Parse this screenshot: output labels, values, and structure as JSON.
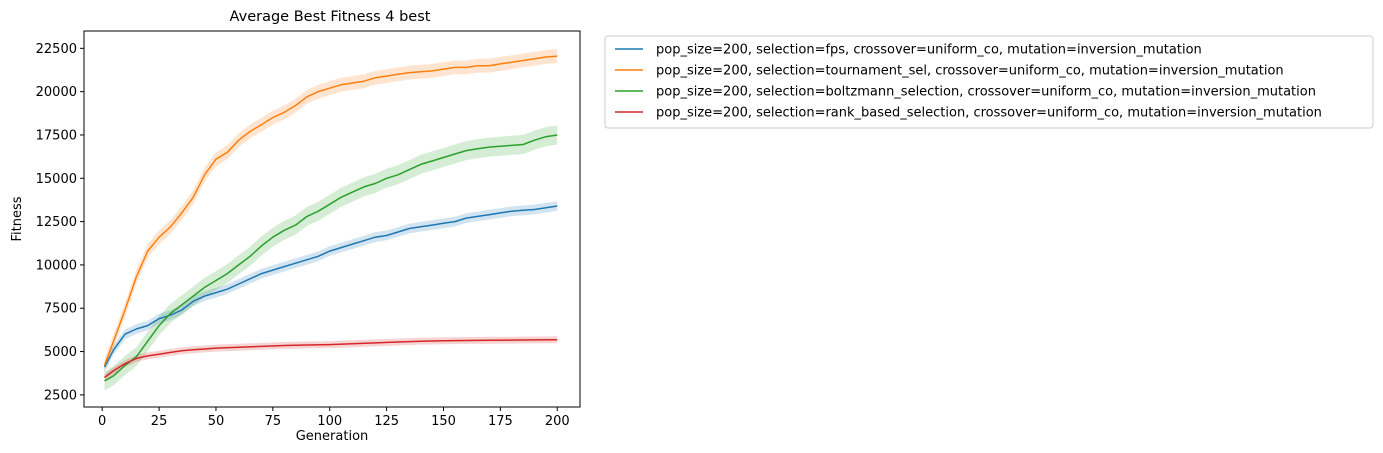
{
  "chart_data": {
    "type": "line",
    "title": "Average Best Fitness 4 best",
    "xlabel": "Generation",
    "ylabel": "Fitness",
    "xlim": [
      -8,
      210
    ],
    "ylim": [
      1800,
      23500
    ],
    "xticks": [
      0,
      25,
      50,
      75,
      100,
      125,
      150,
      175,
      200
    ],
    "yticks": [
      2500,
      5000,
      7500,
      10000,
      12500,
      15000,
      17500,
      20000,
      22500
    ],
    "grid": false,
    "legend_position": "outside-top-right",
    "series": [
      {
        "name": "pop_size=200, selection=fps, crossover=uniform_co, mutation=inversion_mutation",
        "color": "#1f77b4",
        "x": [
          1,
          5,
          10,
          15,
          20,
          25,
          30,
          35,
          40,
          45,
          50,
          55,
          60,
          65,
          70,
          75,
          80,
          85,
          90,
          95,
          100,
          105,
          110,
          115,
          120,
          125,
          130,
          135,
          140,
          145,
          150,
          155,
          160,
          165,
          170,
          175,
          180,
          185,
          190,
          195,
          200
        ],
        "y": [
          4100,
          5100,
          6000,
          6300,
          6500,
          6900,
          7100,
          7400,
          7900,
          8200,
          8400,
          8600,
          8900,
          9200,
          9500,
          9700,
          9900,
          10100,
          10300,
          10500,
          10800,
          11000,
          11200,
          11400,
          11600,
          11700,
          11900,
          12100,
          12200,
          12300,
          12400,
          12500,
          12700,
          12800,
          12900,
          13000,
          13100,
          13150,
          13200,
          13300,
          13400
        ],
        "band": 280
      },
      {
        "name": "pop_size=200, selection=tournament_sel, crossover=uniform_co, mutation=inversion_mutation",
        "color": "#ff7f0e",
        "x": [
          1,
          5,
          10,
          15,
          20,
          25,
          30,
          35,
          40,
          45,
          50,
          55,
          60,
          65,
          70,
          75,
          80,
          85,
          90,
          95,
          100,
          105,
          110,
          115,
          120,
          125,
          130,
          135,
          140,
          145,
          150,
          155,
          160,
          165,
          170,
          175,
          180,
          185,
          190,
          195,
          200
        ],
        "y": [
          4200,
          5600,
          7400,
          9300,
          10800,
          11600,
          12200,
          13000,
          13900,
          15200,
          16100,
          16500,
          17200,
          17700,
          18100,
          18500,
          18800,
          19200,
          19700,
          20000,
          20200,
          20400,
          20500,
          20600,
          20800,
          20900,
          21000,
          21100,
          21150,
          21200,
          21300,
          21400,
          21400,
          21500,
          21500,
          21600,
          21700,
          21800,
          21900,
          22000,
          22050
        ],
        "band": 400
      },
      {
        "name": "pop_size=200, selection=boltzmann_selection, crossover=uniform_co, mutation=inversion_mutation",
        "color": "#2ca02c",
        "x": [
          1,
          5,
          10,
          15,
          20,
          25,
          30,
          35,
          40,
          45,
          50,
          55,
          60,
          65,
          70,
          75,
          80,
          85,
          90,
          95,
          100,
          105,
          110,
          115,
          120,
          125,
          130,
          135,
          140,
          145,
          150,
          155,
          160,
          165,
          170,
          175,
          180,
          185,
          190,
          195,
          200
        ],
        "y": [
          3300,
          3600,
          4200,
          4700,
          5600,
          6500,
          7200,
          7700,
          8200,
          8700,
          9100,
          9500,
          10000,
          10500,
          11100,
          11600,
          12000,
          12300,
          12800,
          13100,
          13500,
          13900,
          14200,
          14500,
          14700,
          15000,
          15200,
          15500,
          15800,
          16000,
          16200,
          16400,
          16600,
          16700,
          16800,
          16850,
          16900,
          16950,
          17200,
          17400,
          17500
        ],
        "band": 550
      },
      {
        "name": "pop_size=200, selection=rank_based_selection, crossover=uniform_co, mutation=inversion_mutation",
        "color": "#d62728",
        "x": [
          1,
          5,
          10,
          15,
          20,
          25,
          30,
          35,
          40,
          45,
          50,
          60,
          70,
          80,
          90,
          100,
          110,
          120,
          130,
          140,
          150,
          160,
          170,
          180,
          190,
          200
        ],
        "y": [
          3500,
          3900,
          4300,
          4600,
          4750,
          4850,
          4950,
          5050,
          5100,
          5150,
          5200,
          5250,
          5300,
          5350,
          5380,
          5400,
          5450,
          5500,
          5550,
          5600,
          5620,
          5640,
          5650,
          5660,
          5670,
          5680
        ],
        "band": 200
      }
    ]
  }
}
